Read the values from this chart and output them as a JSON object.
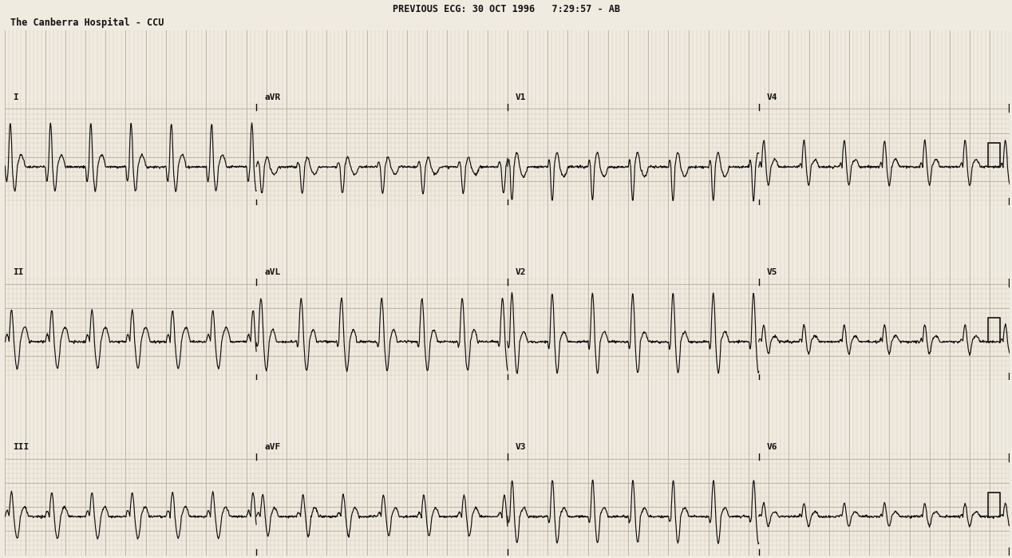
{
  "title_line1": "PREVIOUS ECG: 30 OCT 1996   7:29:57 - AB",
  "title_line2": "The Canberra Hospital - CCU",
  "background_color": "#f0ebe0",
  "grid_minor_color": "#c8bfae",
  "grid_major_color": "#b8afa0",
  "ecg_color": "#111111",
  "leads_row1": [
    "I",
    "aVR",
    "V1",
    "V4"
  ],
  "leads_row2": [
    "II",
    "aVL",
    "V2",
    "V5"
  ],
  "leads_row3": [
    "III",
    "aVF",
    "V3",
    "V6"
  ],
  "fig_width": 12.68,
  "fig_height": 6.99,
  "dpi": 100,
  "heart_rate": 150
}
